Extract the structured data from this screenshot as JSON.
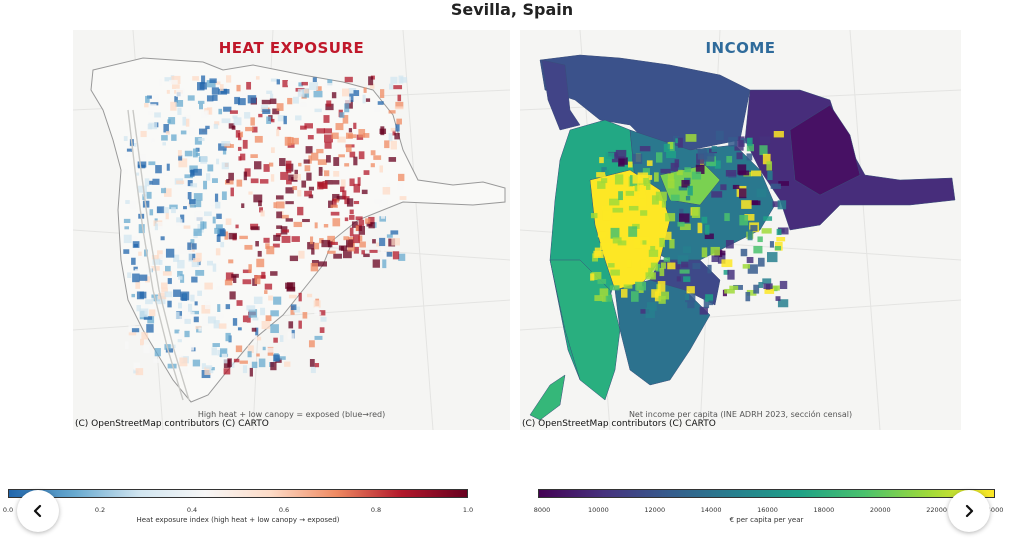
{
  "page": {
    "title": "Sevilla, Spain"
  },
  "heat_map": {
    "title": "HEAT EXPOSURE",
    "caption": "High heat + low canopy = exposed (blue→red)",
    "attribution": "(C) OpenStreetMap contributors (C) CARTO"
  },
  "income_map": {
    "title": "INCOME",
    "caption": "Net income per capita (INE ADRH 2023, sección censal)",
    "attribution": "(C) OpenStreetMap contributors (C) CARTO"
  },
  "heat_colorbar": {
    "label": "Heat exposure index (high heat + low canopy → exposed)",
    "ticks": [
      "0.0",
      "0.2",
      "0.4",
      "0.6",
      "0.8",
      "1.0"
    ],
    "colors": [
      "#2166ac",
      "#67a9cf",
      "#d1e5f0",
      "#f7f7f7",
      "#fddbc7",
      "#ef8a62",
      "#b2182b",
      "#67001f"
    ]
  },
  "income_colorbar": {
    "label": "€ per capita per year",
    "ticks": [
      "8000",
      "10000",
      "12000",
      "14000",
      "16000",
      "18000",
      "20000",
      "22000",
      "24000"
    ],
    "colors": [
      "#440154",
      "#46327e",
      "#365c8d",
      "#277f8e",
      "#1fa187",
      "#4ac16d",
      "#a0da39",
      "#fde725"
    ]
  },
  "navigation": {
    "prev_icon": "chevron-left-icon",
    "next_icon": "chevron-right-icon"
  }
}
